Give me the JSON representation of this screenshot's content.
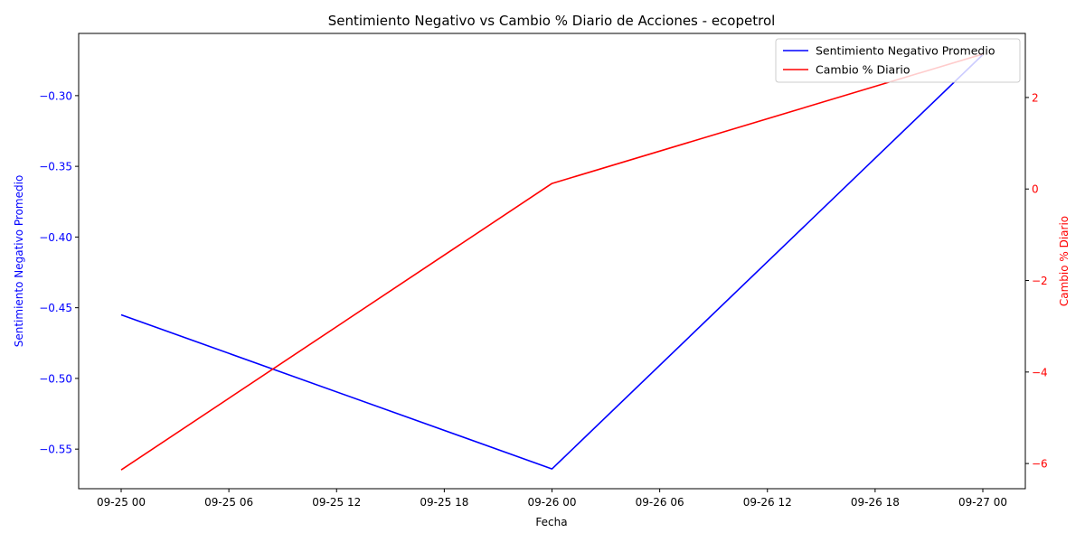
{
  "chart_data": {
    "type": "line",
    "title": "Sentimiento Negativo vs Cambio % Diario de Acciones - ecopetrol",
    "xlabel": "Fecha",
    "x_ticks": [
      "09-25 00",
      "09-25 06",
      "09-25 12",
      "09-25 18",
      "09-26 00",
      "09-26 06",
      "09-26 12",
      "09-26 18",
      "09-27 00"
    ],
    "x_dates": [
      "2023-09-25",
      "2023-09-26",
      "2023-09-27"
    ],
    "left_axis": {
      "label": "Sentimiento Negativo Promedio",
      "color": "#0000ff",
      "ylim": [
        -0.578,
        -0.256
      ],
      "ticks": [
        -0.55,
        -0.5,
        -0.45,
        -0.4,
        -0.35,
        -0.3
      ],
      "tick_labels": [
        "−0.55",
        "−0.50",
        "−0.45",
        "−0.40",
        "−0.35",
        "−0.30"
      ]
    },
    "right_axis": {
      "label": "Cambio % Diario",
      "color": "#ff0000",
      "ylim": [
        -6.55,
        3.4
      ],
      "ticks": [
        -6,
        -4,
        -2,
        0,
        2
      ],
      "tick_labels": [
        "−6",
        "−4",
        "−2",
        "0",
        "2"
      ]
    },
    "series": [
      {
        "name": "Sentimiento Negativo Promedio",
        "axis": "left",
        "color": "#0000ff",
        "values": [
          -0.455,
          -0.564,
          -0.271
        ]
      },
      {
        "name": "Cambio % Diario",
        "axis": "right",
        "color": "#ff0000",
        "values": [
          -6.14,
          0.12,
          2.95
        ]
      }
    ],
    "legend_position": "upper-right",
    "grid": false
  }
}
